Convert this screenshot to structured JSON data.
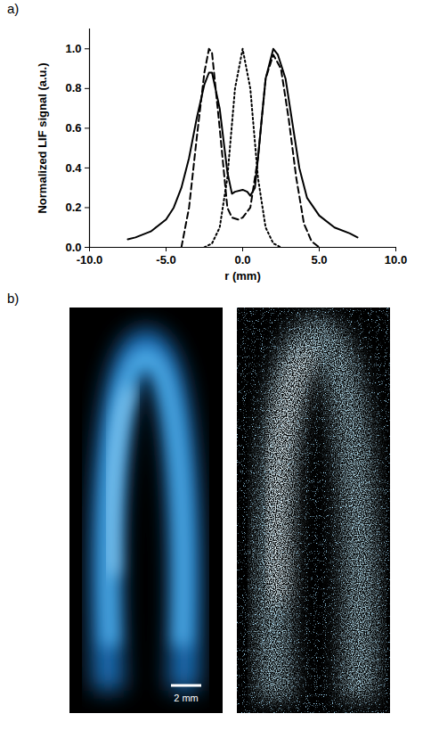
{
  "panel_labels": [
    "a)",
    "b)"
  ],
  "chart_data": {
    "type": "line",
    "xlabel": "r (mm)",
    "ylabel": "Normalized LIF signal (a.u.)",
    "xlim": [
      -10,
      10
    ],
    "xticks": [
      {
        "value": -10,
        "label": "-10.0"
      },
      {
        "value": -5,
        "label": "-5.0"
      },
      {
        "value": 0,
        "label": "0.0"
      },
      {
        "value": 5,
        "label": "5.0"
      },
      {
        "value": 10,
        "label": "10.0"
      }
    ],
    "ylim": [
      0,
      1.1
    ],
    "yticks": [
      {
        "value": 0,
        "label": "0.0"
      },
      {
        "value": 0.2,
        "label": "0.2"
      },
      {
        "value": 0.4,
        "label": "0.4"
      },
      {
        "value": 0.6,
        "label": "0.6"
      },
      {
        "value": 0.8,
        "label": "0.8"
      },
      {
        "value": 1,
        "label": "1.0"
      }
    ],
    "grid": false,
    "series": [
      {
        "color": "#000000",
        "line_style": "solid",
        "x": [
          -7.5,
          -7,
          -6,
          -5,
          -4.5,
          -4,
          -3.5,
          -3,
          -2.5,
          -2.2,
          -2,
          -1.5,
          -1,
          -0.7,
          -0.5,
          0,
          0.3,
          0.5,
          0.8,
          1,
          1.5,
          2,
          2.3,
          2.8,
          3.2,
          3.7,
          4.2,
          5,
          6,
          7,
          7.5
        ],
        "values": [
          0.04,
          0.05,
          0.08,
          0.14,
          0.2,
          0.3,
          0.45,
          0.65,
          0.82,
          0.88,
          0.88,
          0.7,
          0.38,
          0.27,
          0.28,
          0.29,
          0.28,
          0.26,
          0.3,
          0.45,
          0.85,
          1.0,
          0.97,
          0.85,
          0.65,
          0.4,
          0.25,
          0.16,
          0.1,
          0.07,
          0.05
        ]
      },
      {
        "color": "#000000",
        "line_style": "dashed",
        "x": [
          -4,
          -3.5,
          -3,
          -2.5,
          -2.2,
          -2,
          -1.5,
          -1,
          -0.7,
          -0.3,
          0,
          0.5,
          1,
          1.5,
          2,
          2.5,
          3,
          3.5,
          4,
          4.5,
          5
        ],
        "values": [
          0.0,
          0.2,
          0.55,
          0.88,
          1.0,
          0.98,
          0.6,
          0.2,
          0.15,
          0.14,
          0.15,
          0.2,
          0.45,
          0.85,
          0.97,
          0.9,
          0.65,
          0.35,
          0.12,
          0.03,
          0.0
        ]
      },
      {
        "color": "#000000",
        "line_style": "dotted",
        "x": [
          -2.5,
          -2,
          -1.5,
          -1,
          -0.5,
          0,
          0.5,
          1,
          1.5,
          2,
          2.5
        ],
        "values": [
          0.0,
          0.02,
          0.1,
          0.35,
          0.8,
          1.0,
          0.8,
          0.35,
          0.1,
          0.02,
          0.0
        ]
      }
    ]
  },
  "images": {
    "scale_bar": "2 mm"
  }
}
